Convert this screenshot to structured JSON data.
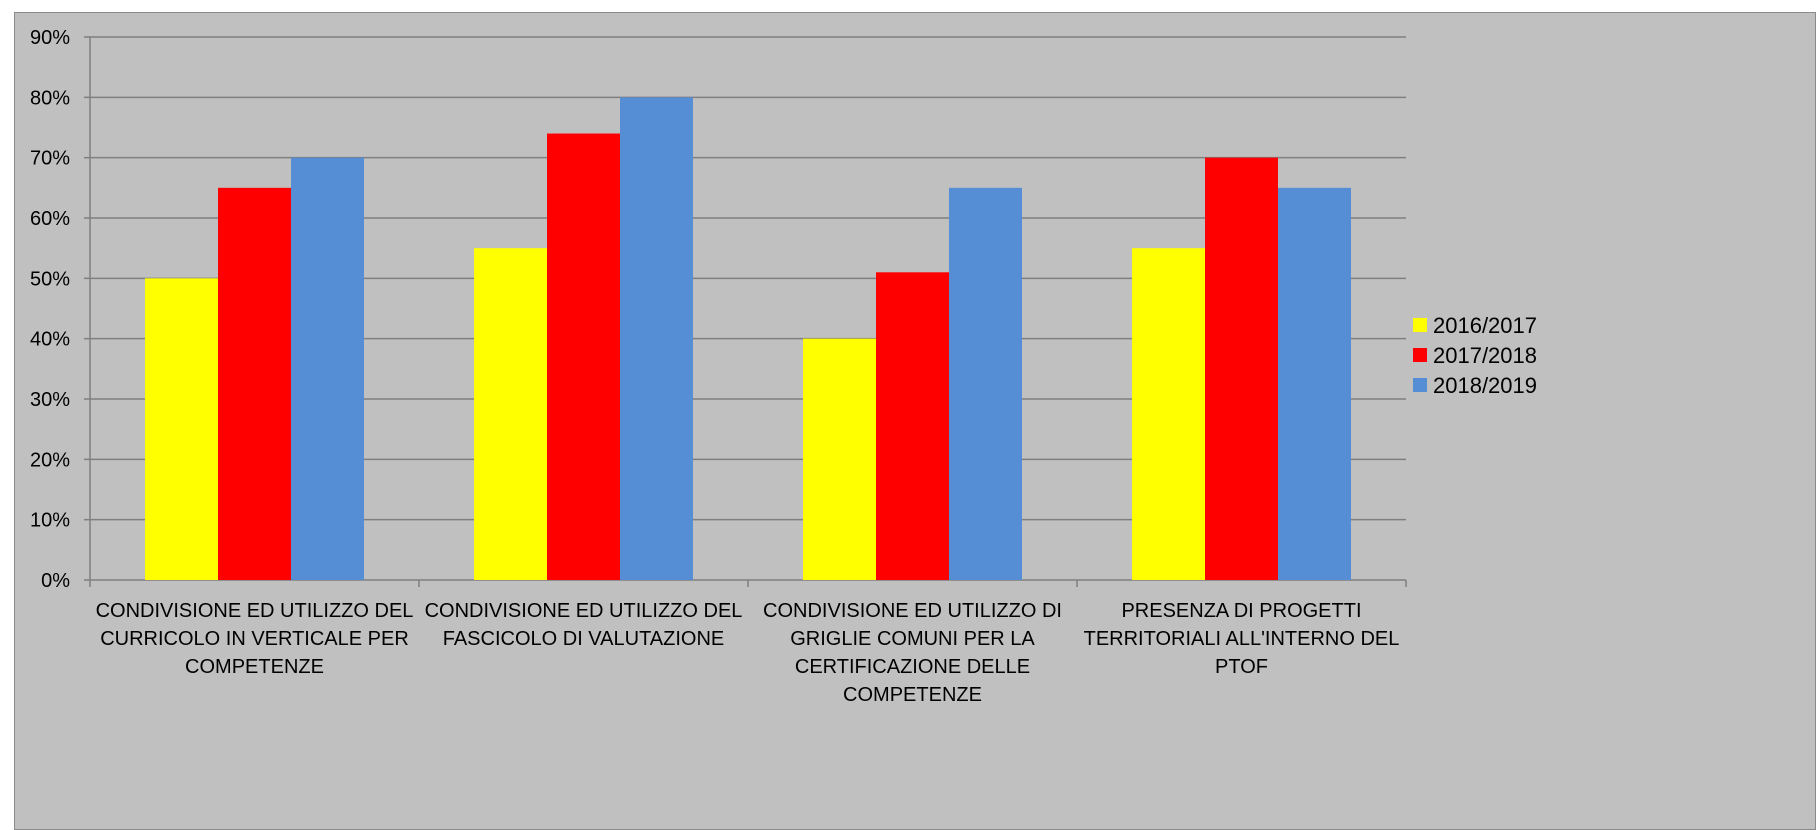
{
  "chart_data": {
    "type": "bar",
    "categories": [
      [
        "CONDIVISIONE ED UTILIZZO DEL",
        "CURRICOLO IN VERTICALE PER",
        "COMPETENZE"
      ],
      [
        "CONDIVISIONE ED UTILIZZO DEL",
        "FASCICOLO DI VALUTAZIONE"
      ],
      [
        "CONDIVISIONE ED UTILIZZO DI",
        "GRIGLIE COMUNI PER LA",
        "CERTIFICAZIONE DELLE",
        "COMPETENZE"
      ],
      [
        "PRESENZA DI PROGETTI",
        "TERRITORIALI ALL'INTERNO DEL",
        "PTOF"
      ]
    ],
    "series": [
      {
        "name": "2016/2017",
        "color": "#ffff00",
        "values": [
          50,
          55,
          40,
          55
        ]
      },
      {
        "name": "2017/2018",
        "color": "#ff0000",
        "values": [
          65,
          74,
          51,
          70
        ]
      },
      {
        "name": "2018/2019",
        "color": "#558ed5",
        "values": [
          70,
          80,
          65,
          65
        ]
      }
    ],
    "ylim": [
      0,
      90
    ],
    "yticks": [
      "0%",
      "10%",
      "20%",
      "30%",
      "40%",
      "50%",
      "60%",
      "70%",
      "80%",
      "90%"
    ],
    "grid": true,
    "legend_position": "right",
    "title": "",
    "xlabel": "",
    "ylabel": ""
  }
}
